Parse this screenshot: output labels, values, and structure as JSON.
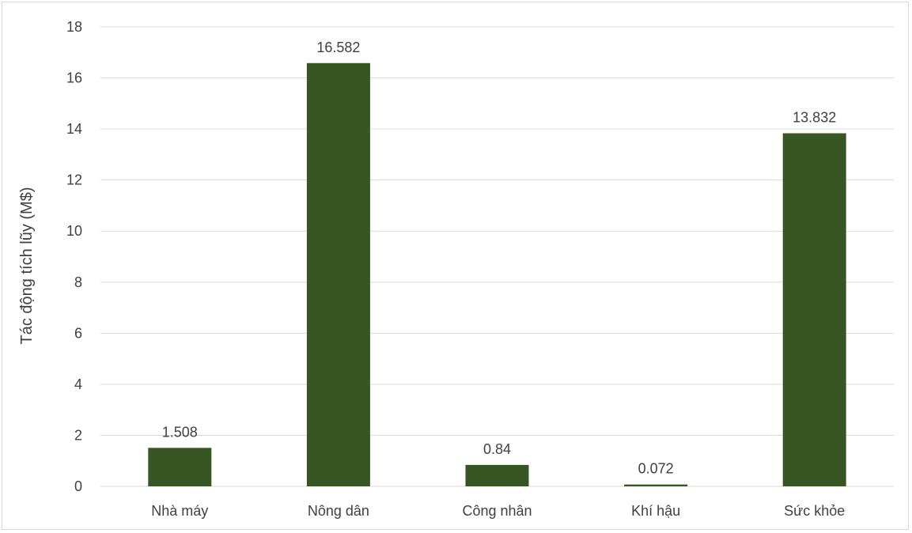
{
  "chart_data": {
    "type": "bar",
    "categories": [
      "Nhà máy",
      "Nông dân",
      "Công nhân",
      "Khí hậu",
      "Sức khỏe"
    ],
    "values": [
      1.508,
      16.582,
      0.84,
      0.072,
      13.832
    ],
    "data_labels": [
      "1.508",
      "16.582",
      "0.84",
      "0.072",
      "13.832"
    ],
    "title": "",
    "xlabel": "",
    "ylabel": "Tác động tích lũy (M$)",
    "ylim": [
      0,
      18
    ],
    "yticks": [
      0,
      2,
      4,
      6,
      8,
      10,
      12,
      14,
      16,
      18
    ],
    "grid": true,
    "legend": "none",
    "bar_color": "#375623"
  }
}
